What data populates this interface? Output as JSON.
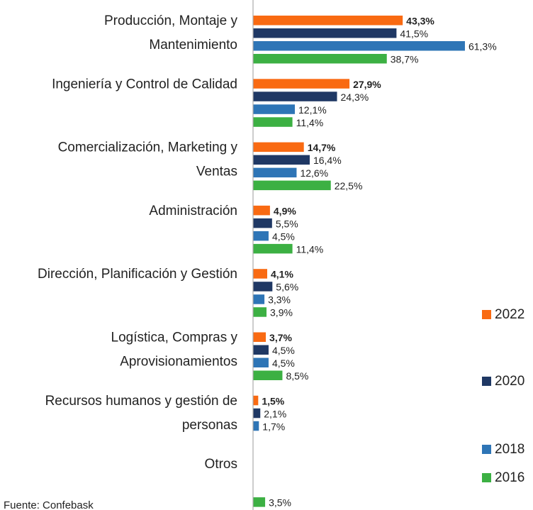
{
  "chart_data": {
    "type": "bar",
    "orientation": "horizontal",
    "categories": [
      [
        "Producción, Montaje y",
        "Mantenimiento"
      ],
      [
        "Ingeniería y Control de Calidad"
      ],
      [
        "Comercialización, Marketing y",
        "Ventas"
      ],
      [
        "Administración"
      ],
      [
        "Dirección, Planificación y Gestión"
      ],
      [
        "Logística, Compras y",
        "Aprovisionamientos"
      ],
      [
        "Recursos humanos y gestión de",
        "personas"
      ],
      [
        "Otros"
      ]
    ],
    "series": [
      {
        "name": "2022",
        "color": "#f96a12",
        "bold_labels": true,
        "values": [
          43.3,
          27.9,
          14.7,
          4.9,
          4.1,
          3.7,
          1.5,
          null
        ],
        "value_labels": [
          "43,3%",
          "27,9%",
          "14,7%",
          "4,9%",
          "4,1%",
          "3,7%",
          "1,5%",
          null
        ]
      },
      {
        "name": "2020",
        "color": "#1f3864",
        "values": [
          41.5,
          24.3,
          16.4,
          5.5,
          5.6,
          4.5,
          2.1,
          null
        ],
        "value_labels": [
          "41,5%",
          "24,3%",
          "16,4%",
          "5,5%",
          "5,6%",
          "4,5%",
          "2,1%",
          null
        ]
      },
      {
        "name": "2018",
        "color": "#2e75b6",
        "values": [
          61.3,
          12.1,
          12.6,
          4.5,
          3.3,
          4.5,
          1.7,
          null
        ],
        "value_labels": [
          "61,3%",
          "12,1%",
          "12,6%",
          "4,5%",
          "3,3%",
          "4,5%",
          "1,7%",
          null
        ]
      },
      {
        "name": "2016",
        "color": "#3cb043",
        "values": [
          38.7,
          11.4,
          22.5,
          11.4,
          3.9,
          8.5,
          null,
          3.5
        ],
        "value_labels": [
          "38,7%",
          "11,4%",
          "22,5%",
          "11,4%",
          "3,9%",
          "8,5%",
          null,
          "3,5%"
        ]
      }
    ],
    "xlim": [
      0,
      65
    ],
    "source": "Fuente: Confebask"
  }
}
